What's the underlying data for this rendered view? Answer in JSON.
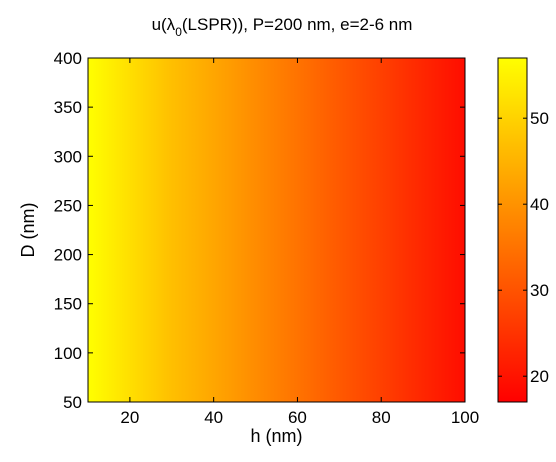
{
  "chart_data": {
    "type": "heatmap",
    "title": {
      "prefix": "u(λ",
      "subscript": "0",
      "suffix": "(LSPR)), P=200 nm, e=2-6 nm"
    },
    "xlabel": "h (nm)",
    "ylabel": "D (nm)",
    "xlim": [
      10,
      100
    ],
    "ylim": [
      50,
      400
    ],
    "x_ticks": [
      20,
      40,
      60,
      80,
      100
    ],
    "y_ticks": [
      50,
      100,
      150,
      200,
      250,
      300,
      350,
      400
    ],
    "x": [
      10,
      20,
      30,
      40,
      50,
      60,
      70,
      80,
      90,
      100
    ],
    "value_by_x": [
      57,
      52,
      47,
      43,
      39,
      35,
      31,
      27,
      23,
      19
    ],
    "note_values": "Value depends on h only; constant across D",
    "colorbar": {
      "range": [
        17,
        57
      ],
      "ticks": [
        20,
        30,
        40,
        50
      ],
      "colormap": "autumn",
      "color_low": "#ff0000",
      "color_high": "#ffff00"
    },
    "grid": false
  }
}
